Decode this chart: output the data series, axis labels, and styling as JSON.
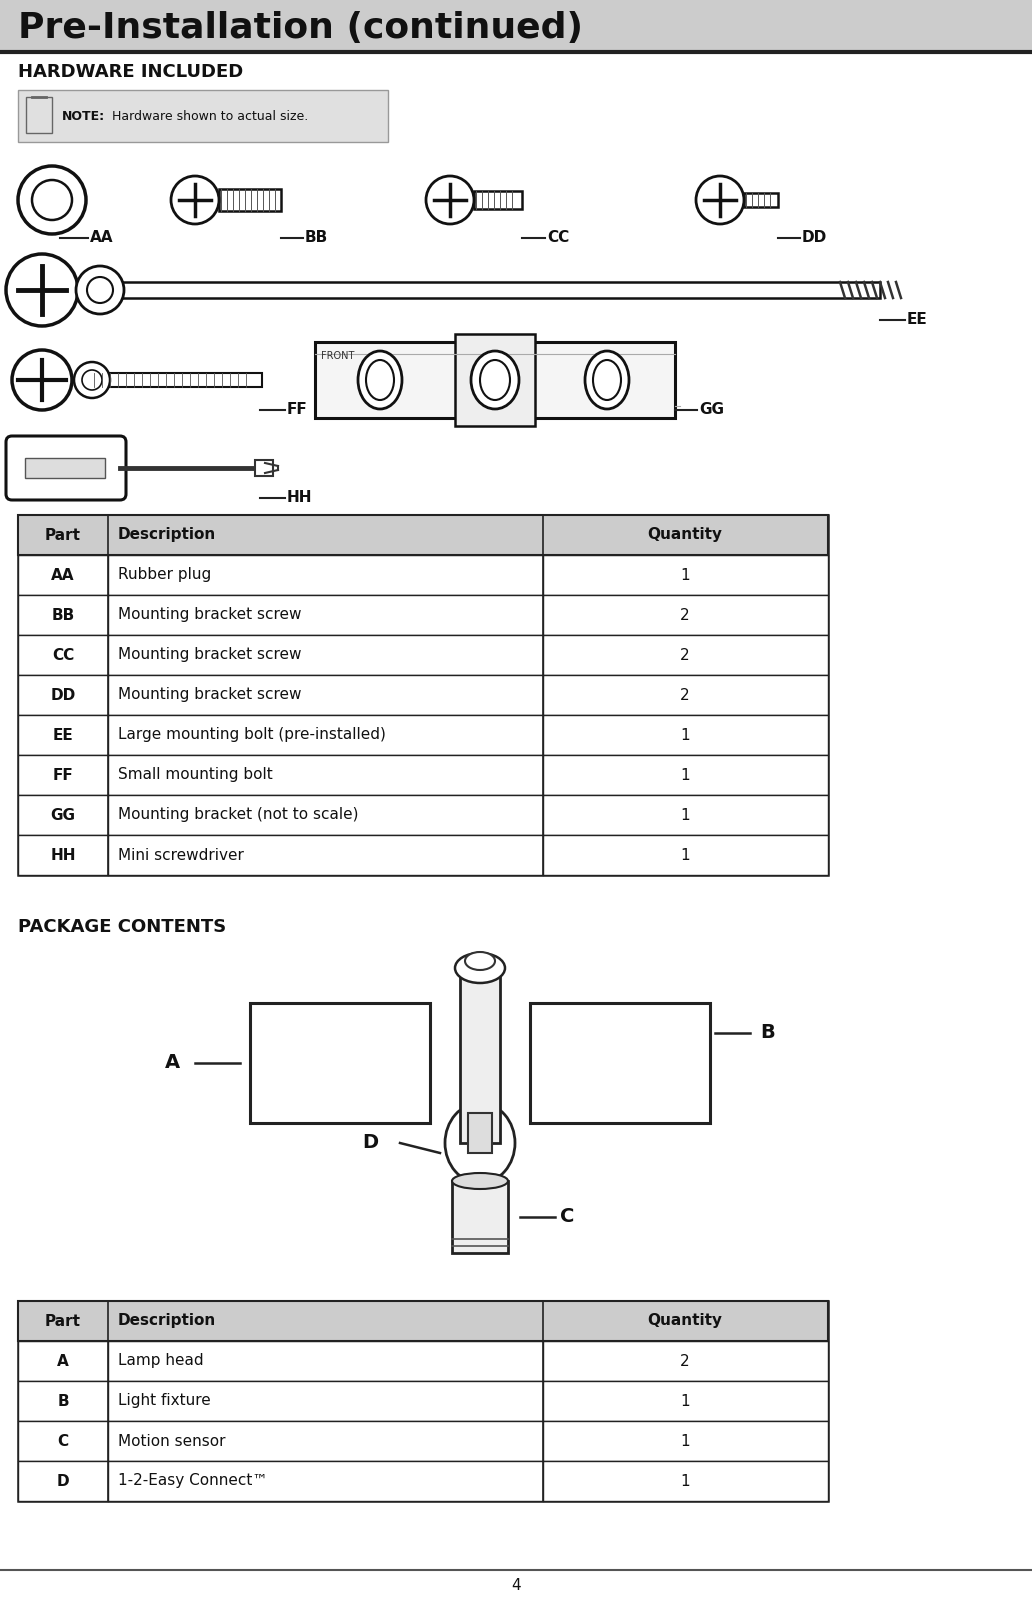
{
  "title": "Pre-Installation (continued)",
  "section1_title": "HARDWARE INCLUDED",
  "note_text": "NOTE: Hardware shown to actual size.",
  "hardware_table_headers": [
    "Part",
    "Description",
    "Quantity"
  ],
  "hardware_table_rows": [
    [
      "AA",
      "Rubber plug",
      "1"
    ],
    [
      "BB",
      "Mounting bracket screw",
      "2"
    ],
    [
      "CC",
      "Mounting bracket screw",
      "2"
    ],
    [
      "DD",
      "Mounting bracket screw",
      "2"
    ],
    [
      "EE",
      "Large mounting bolt (pre-installed)",
      "1"
    ],
    [
      "FF",
      "Small mounting bolt",
      "1"
    ],
    [
      "GG",
      "Mounting bracket (not to scale)",
      "1"
    ],
    [
      "HH",
      "Mini screwdriver",
      "1"
    ]
  ],
  "section2_title": "PACKAGE CONTENTS",
  "package_table_headers": [
    "Part",
    "Description",
    "Quantity"
  ],
  "package_table_rows": [
    [
      "A",
      "Lamp head",
      "2"
    ],
    [
      "B",
      "Light fixture",
      "1"
    ],
    [
      "C",
      "Motion sensor",
      "1"
    ],
    [
      "D",
      "1-2-Еasy Connect™",
      "1"
    ]
  ],
  "page_number": "4",
  "bg_color": "#ffffff",
  "title_bg": "#cccccc",
  "table_header_bg": "#cccccc",
  "table_border": "#222222",
  "note_bg": "#e0e0e0"
}
